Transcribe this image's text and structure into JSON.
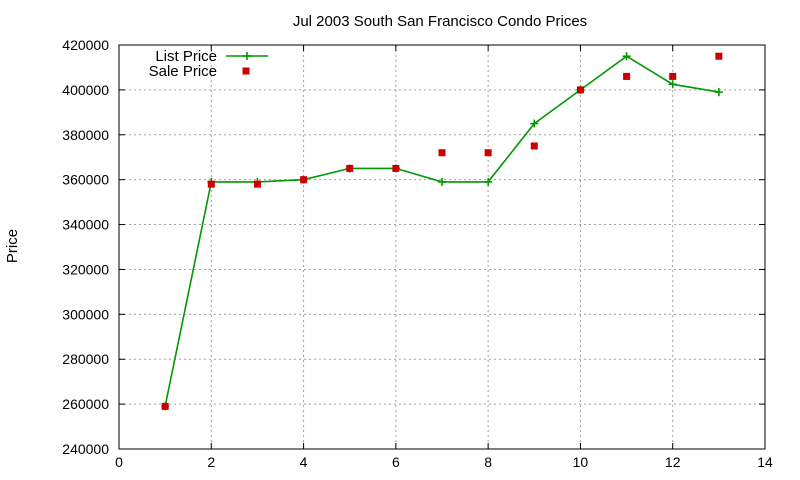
{
  "chart_data": {
    "type": "line",
    "title": "Jul 2003 South San Francisco Condo Prices",
    "xlabel": "",
    "ylabel": "Price",
    "xlim": [
      0,
      14
    ],
    "ylim": [
      240000,
      420000
    ],
    "xticks": [
      0,
      2,
      4,
      6,
      8,
      10,
      12,
      14
    ],
    "yticks": [
      240000,
      260000,
      280000,
      300000,
      320000,
      340000,
      360000,
      380000,
      400000,
      420000
    ],
    "grid": true,
    "legend_position": "top-left",
    "series": [
      {
        "name": "List Price",
        "style": "line-with-plus-markers",
        "color": "#009900",
        "points": [
          [
            1,
            259000
          ],
          [
            2,
            359000
          ],
          [
            3,
            359000
          ],
          [
            4,
            360000
          ],
          [
            5,
            365000
          ],
          [
            6,
            365000
          ],
          [
            7,
            359000
          ],
          [
            8,
            359000
          ],
          [
            9,
            385000
          ],
          [
            10,
            400000
          ],
          [
            11,
            415000
          ],
          [
            12,
            402500
          ],
          [
            13,
            399000
          ]
        ]
      },
      {
        "name": "Sale Price",
        "style": "square-markers",
        "color": "#cc0000",
        "points": [
          [
            1,
            259000
          ],
          [
            2,
            358000
          ],
          [
            3,
            358000
          ],
          [
            4,
            360000
          ],
          [
            5,
            365000
          ],
          [
            6,
            365000
          ],
          [
            7,
            372000
          ],
          [
            8,
            372000
          ],
          [
            9,
            375000
          ],
          [
            10,
            400000
          ],
          [
            11,
            406000
          ],
          [
            12,
            406000
          ],
          [
            13,
            415000
          ]
        ]
      }
    ]
  }
}
